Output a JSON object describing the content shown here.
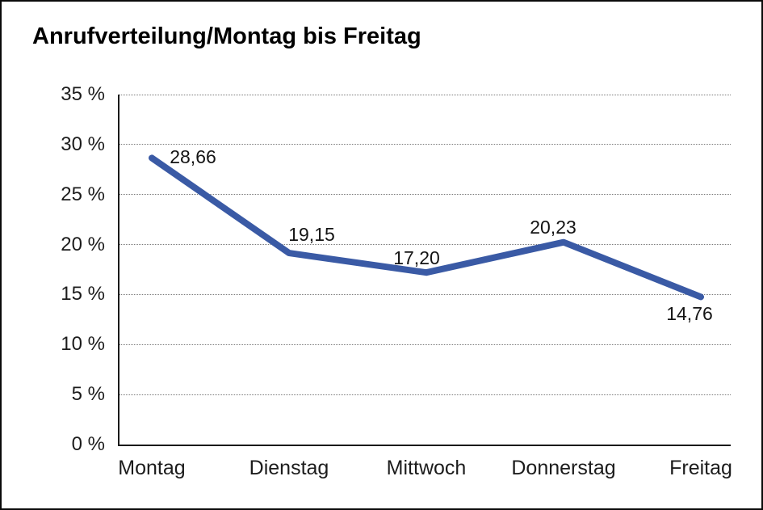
{
  "title": "Anrufverteilung/Montag bis Freitag",
  "chart_data": {
    "type": "line",
    "title": "Anrufverteilung/Montag bis Freitag",
    "categories": [
      "Montag",
      "Dienstag",
      "Mittwoch",
      "Donnerstag",
      "Freitag"
    ],
    "values": [
      28.66,
      19.15,
      17.2,
      20.23,
      14.76
    ],
    "value_labels": [
      "28,66",
      "19,15",
      "17,20",
      "20,23",
      "14,76"
    ],
    "xlabel": "",
    "ylabel": "",
    "ylim": [
      0,
      35
    ],
    "y_ticks": [
      0,
      5,
      10,
      15,
      20,
      25,
      30,
      35
    ],
    "y_tick_labels": [
      "0 %",
      "5 %",
      "10 %",
      "15 %",
      "20 %",
      "25 %",
      "30 %",
      "35 %"
    ],
    "grid": "horizontal-dotted",
    "legend": "none",
    "line_color": "#3A5AA5",
    "unit": "%"
  }
}
